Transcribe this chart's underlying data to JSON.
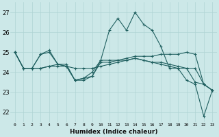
{
  "title": "",
  "xlabel": "Humidex (Indice chaleur)",
  "xlim": [
    -0.5,
    23.5
  ],
  "ylim": [
    21.5,
    27.5
  ],
  "yticks": [
    22,
    23,
    24,
    25,
    26,
    27
  ],
  "xticks": [
    0,
    1,
    2,
    3,
    4,
    5,
    6,
    7,
    8,
    9,
    10,
    11,
    12,
    13,
    14,
    15,
    16,
    17,
    18,
    19,
    20,
    21,
    22,
    23
  ],
  "bg_color": "#cce8e8",
  "line_color": "#206060",
  "grid_color": "#b0d4d4",
  "lines": [
    [
      25.0,
      24.2,
      24.2,
      24.9,
      25.1,
      24.4,
      24.3,
      23.6,
      23.6,
      23.8,
      24.6,
      26.1,
      26.7,
      26.1,
      27.0,
      26.4,
      26.1,
      25.3,
      24.2,
      24.2,
      23.6,
      23.4,
      21.8,
      23.1
    ],
    [
      25.0,
      24.2,
      24.2,
      24.2,
      24.3,
      24.3,
      24.3,
      24.2,
      24.2,
      24.2,
      24.3,
      24.4,
      24.5,
      24.6,
      24.7,
      24.6,
      24.5,
      24.5,
      24.4,
      24.3,
      24.2,
      24.2,
      23.4,
      23.1
    ],
    [
      25.0,
      24.2,
      24.2,
      24.9,
      25.0,
      24.4,
      24.3,
      23.6,
      23.7,
      24.0,
      24.6,
      24.6,
      24.6,
      24.7,
      24.8,
      24.8,
      24.8,
      24.9,
      24.9,
      24.9,
      25.0,
      24.9,
      23.4,
      23.1
    ],
    [
      25.0,
      24.2,
      24.2,
      24.2,
      24.3,
      24.4,
      24.4,
      23.6,
      23.7,
      23.8,
      24.5,
      24.5,
      24.6,
      24.6,
      24.7,
      24.6,
      24.5,
      24.4,
      24.3,
      24.2,
      24.2,
      23.5,
      23.4,
      23.1
    ]
  ]
}
